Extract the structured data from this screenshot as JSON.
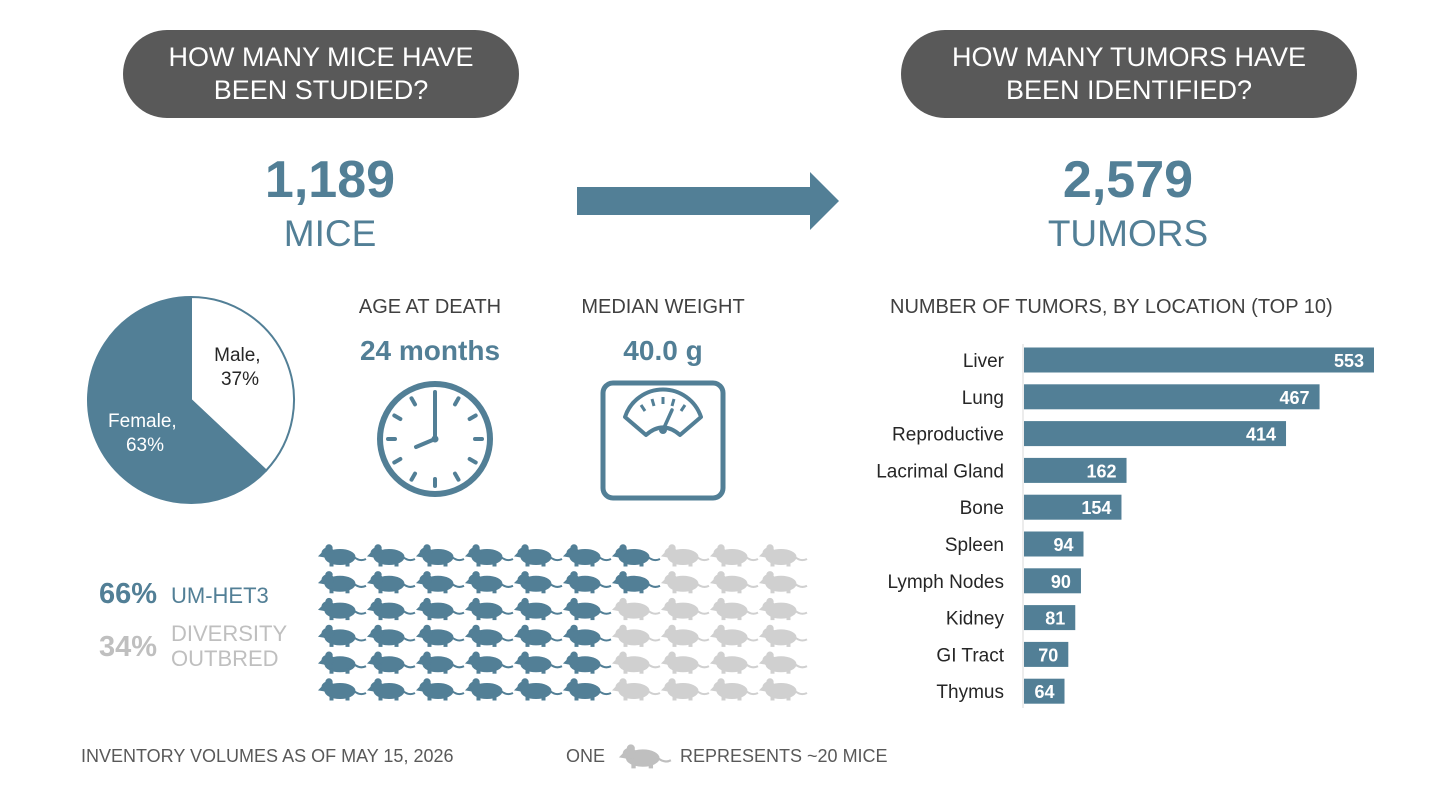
{
  "left_panel": {
    "question": "HOW MANY MICE HAVE\nBEEN STUDIED?",
    "total": "1,189",
    "unit": "MICE"
  },
  "right_panel": {
    "question": "HOW MANY TUMORS HAVE\nBEEN IDENTIFIED?",
    "total": "2,579",
    "unit": "TUMORS"
  },
  "stats": {
    "age_label": "AGE AT DEATH",
    "age_value": "24 months",
    "weight_label": "MEDIAN WEIGHT",
    "weight_value": "40.0 g"
  },
  "icons": {
    "arrow": "right-arrow-icon",
    "clock": "clock-icon",
    "scale": "weighing-scale-icon",
    "mouse": "mouse-icon"
  },
  "strains": {
    "um_het3_pct": "66%",
    "um_het3_label": "UM-HET3",
    "diversity_pct": "34%",
    "diversity_label": "DIVERSITY\nOUTBRED"
  },
  "mouse_grid": {
    "rows": 6,
    "columns": 10,
    "blue_per_row": [
      7,
      7,
      6,
      6,
      6,
      6
    ]
  },
  "footer": {
    "inventory_note": "INVENTORY VOLUMES AS OF MAY 15, 2026",
    "legend_prefix": "ONE",
    "legend_suffix": "REPRESENTS ~20 MICE"
  },
  "colors": {
    "accent": "#527f96",
    "pill": "#595959",
    "muted": "#bfbfbf",
    "text": "#404040"
  },
  "chart_data": [
    {
      "type": "pie",
      "categories": [
        "Male",
        "Female"
      ],
      "values": [
        37,
        63
      ],
      "labels": [
        "Male,\n37%",
        "Female,\n63%"
      ],
      "colors": [
        "#ffffff",
        "#527f96"
      ]
    },
    {
      "type": "bar",
      "orientation": "horizontal",
      "title": "NUMBER OF TUMORS, BY LOCATION (TOP 10)",
      "categories": [
        "Liver",
        "Lung",
        "Reproductive",
        "Lacrimal Gland",
        "Bone",
        "Spleen",
        "Lymph Nodes",
        "Kidney",
        "GI Tract",
        "Thymus"
      ],
      "values": [
        553,
        467,
        414,
        162,
        154,
        94,
        90,
        81,
        70,
        64
      ],
      "xlim": [
        0,
        553
      ]
    }
  ]
}
